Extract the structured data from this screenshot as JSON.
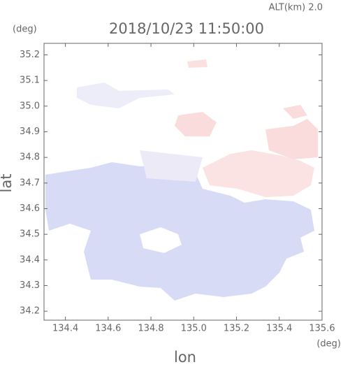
{
  "chart_data": {
    "type": "map",
    "altitude_label": "ALT(km) 2.0",
    "title": "2018/10/23 11:50:00",
    "y_unit": "(deg)",
    "x_unit": "(deg)",
    "ylabel": "lat",
    "xlabel": "lon",
    "xlim": [
      134.3,
      135.6
    ],
    "xticks": [
      134.4,
      134.6,
      134.8,
      {
        "value": 135.0,
        "label": "135.0"
      },
      135.2,
      135.4,
      135.6
    ],
    "ylim": [
      34.165,
      35.245
    ],
    "yticks": [
      34.2,
      34.3,
      34.4,
      34.5,
      34.6,
      34.7,
      34.8,
      34.9,
      {
        "value": 35.0,
        "label": "35.0"
      },
      35.1,
      35.2
    ]
  }
}
